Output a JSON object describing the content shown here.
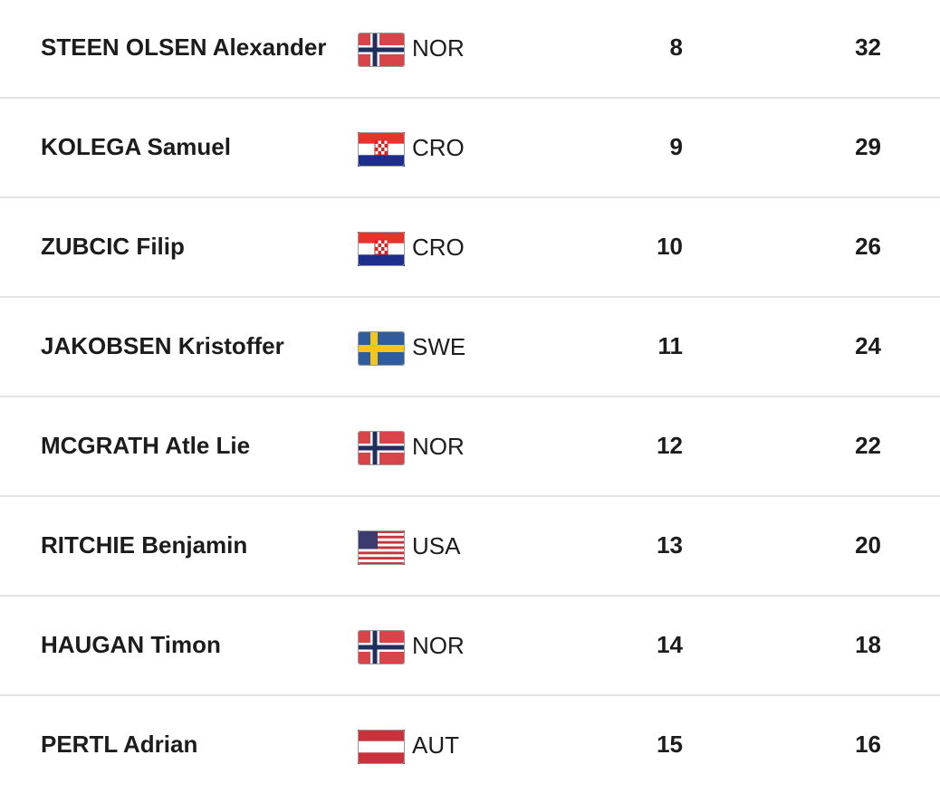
{
  "table": {
    "rows": [
      [
        "STEEN OLSEN Alexander",
        "NOR",
        "8",
        "32"
      ],
      [
        "KOLEGA Samuel",
        "CRO",
        "9",
        "29"
      ],
      [
        "ZUBCIC Filip",
        "CRO",
        "10",
        "26"
      ],
      [
        "JAKOBSEN Kristoffer",
        "SWE",
        "11",
        "24"
      ],
      [
        "MCGRATH Atle Lie",
        "NOR",
        "12",
        "22"
      ],
      [
        "RITCHIE Benjamin",
        "USA",
        "13",
        "20"
      ],
      [
        "HAUGAN Timon",
        "NOR",
        "14",
        "18"
      ],
      [
        "PERTL Adrian",
        "AUT",
        "15",
        "16"
      ]
    ]
  }
}
